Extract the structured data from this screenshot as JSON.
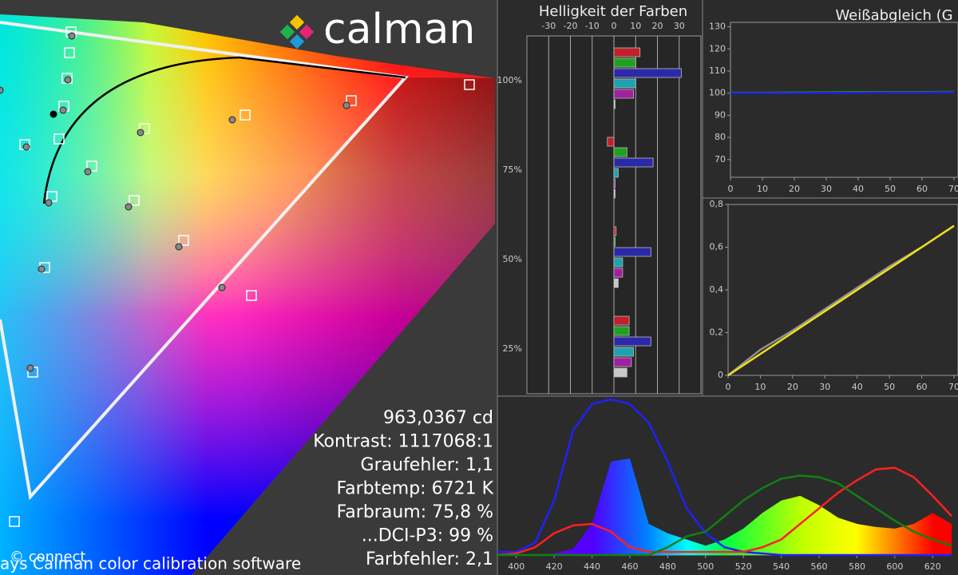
{
  "logo": "calman",
  "stats": [
    "963,0367 cd",
    "Kontrast: 1117068:1",
    "Graufehler: 1,1",
    "Farbtemp: 6721 K",
    "Farbraum: 75,8 %",
    "...DCI-P3: 99 %",
    "Farbfehler: 2,1"
  ],
  "footer": {
    "copyright": "© connect",
    "software": "ays  Calman color calibration software"
  },
  "chart_data": [
    {
      "type": "bar",
      "orientation": "horizontal",
      "title": "Helligkeit der Farben",
      "categories": [
        "100%",
        "75%",
        "50%",
        "25%"
      ],
      "series": [
        {
          "color": "#c0202a",
          "values": [
            12,
            -3,
            1,
            7
          ]
        },
        {
          "color": "#20a020",
          "values": [
            10,
            6,
            0,
            7
          ]
        },
        {
          "color": "#2a2aa8",
          "values": [
            31,
            18,
            17,
            17
          ]
        },
        {
          "color": "#20a0b0",
          "values": [
            10,
            2,
            4,
            9
          ]
        },
        {
          "color": "#a020a0",
          "values": [
            9,
            0,
            4,
            8
          ]
        },
        {
          "color": "#c8c8c8",
          "values": [
            0,
            0,
            2,
            6
          ]
        }
      ],
      "xlim": [
        -40,
        40
      ],
      "xticks": [
        -30,
        -20,
        -10,
        0,
        10,
        20,
        30
      ],
      "grid": true
    },
    {
      "type": "line",
      "title": "Weißabgleich (G",
      "x": [
        0,
        10,
        20,
        30,
        40,
        50,
        60,
        70
      ],
      "series": [
        {
          "color": "#20a020",
          "values": [
            100.2,
            100.2,
            100.3,
            100.4,
            100.5,
            100.5,
            100.5,
            100.6
          ]
        },
        {
          "color": "#2020e0",
          "values": [
            100,
            100,
            100,
            100.1,
            100.2,
            100.3,
            100.3,
            100.4
          ]
        }
      ],
      "xlim": [
        0,
        70
      ],
      "xticks": [
        0,
        10,
        20,
        30,
        40,
        50,
        60,
        70
      ],
      "ylim": [
        62,
        132
      ],
      "yticks": [
        70,
        80,
        90,
        100,
        110,
        120,
        130
      ]
    },
    {
      "type": "line",
      "x": [
        0,
        10,
        20,
        30,
        40,
        50,
        60,
        70
      ],
      "series": [
        {
          "color": "#909090",
          "values": [
            0,
            0.12,
            0.21,
            0.31,
            0.41,
            0.51,
            0.6,
            0.7
          ]
        },
        {
          "color": "#f0e020",
          "values": [
            0,
            0.1,
            0.2,
            0.3,
            0.4,
            0.5,
            0.6,
            0.7
          ]
        }
      ],
      "xlim": [
        0,
        70
      ],
      "xticks": [
        0,
        10,
        20,
        30,
        40,
        50,
        60,
        70
      ],
      "ylim": [
        0,
        0.8
      ],
      "yticks": [
        0,
        {
          "value": 0.2,
          "label": "0,2"
        },
        {
          "value": 0.4,
          "label": "0,4"
        },
        {
          "value": 0.6,
          "label": "0,6"
        },
        {
          "value": 0.8,
          "label": "0,8"
        }
      ]
    },
    {
      "type": "line",
      "x": [
        390,
        400,
        410,
        420,
        430,
        440,
        450,
        460,
        470,
        480,
        490,
        500,
        510,
        520,
        530,
        540,
        550,
        560,
        570,
        580,
        590,
        600,
        610,
        620,
        630
      ],
      "series": [
        {
          "values": [
            0,
            0,
            0,
            0.01,
            0.04,
            0.2,
            0.6,
            0.62,
            0.2,
            0.14,
            0.1,
            0.06,
            0.1,
            0.17,
            0.27,
            0.35,
            0.38,
            0.32,
            0.24,
            0.2,
            0.18,
            0.17,
            0.2,
            0.27,
            0.2
          ]
        },
        {
          "color": "#2020ff",
          "values": [
            0.02,
            0.02,
            0.08,
            0.35,
            0.8,
            0.97,
            1,
            0.97,
            0.85,
            0.6,
            0.3,
            0.14,
            0.05,
            0.02,
            0.01,
            0,
            0,
            0,
            0,
            0,
            0,
            0,
            0,
            0,
            0
          ]
        },
        {
          "color": "#ff2020",
          "values": [
            0,
            0.01,
            0.05,
            0.14,
            0.19,
            0.2,
            0.15,
            0.05,
            0.02,
            0.02,
            0.02,
            0.02,
            0.02,
            0.02,
            0.05,
            0.1,
            0.2,
            0.3,
            0.4,
            0.48,
            0.55,
            0.56,
            0.5,
            0.38,
            0.25
          ]
        },
        {
          "color": "#108010",
          "values": [
            0,
            0,
            0,
            0,
            0,
            0,
            0,
            0,
            0,
            0.05,
            0.12,
            0.15,
            0.25,
            0.35,
            0.43,
            0.49,
            0.51,
            0.5,
            0.46,
            0.38,
            0.3,
            0.22,
            0.15,
            0.1,
            0.06
          ]
        }
      ],
      "xlim": [
        390,
        630
      ],
      "xticks": [
        400,
        420,
        440,
        460,
        480,
        500,
        520,
        540,
        560,
        580,
        600,
        620
      ],
      "ylim": [
        0,
        1
      ]
    }
  ]
}
